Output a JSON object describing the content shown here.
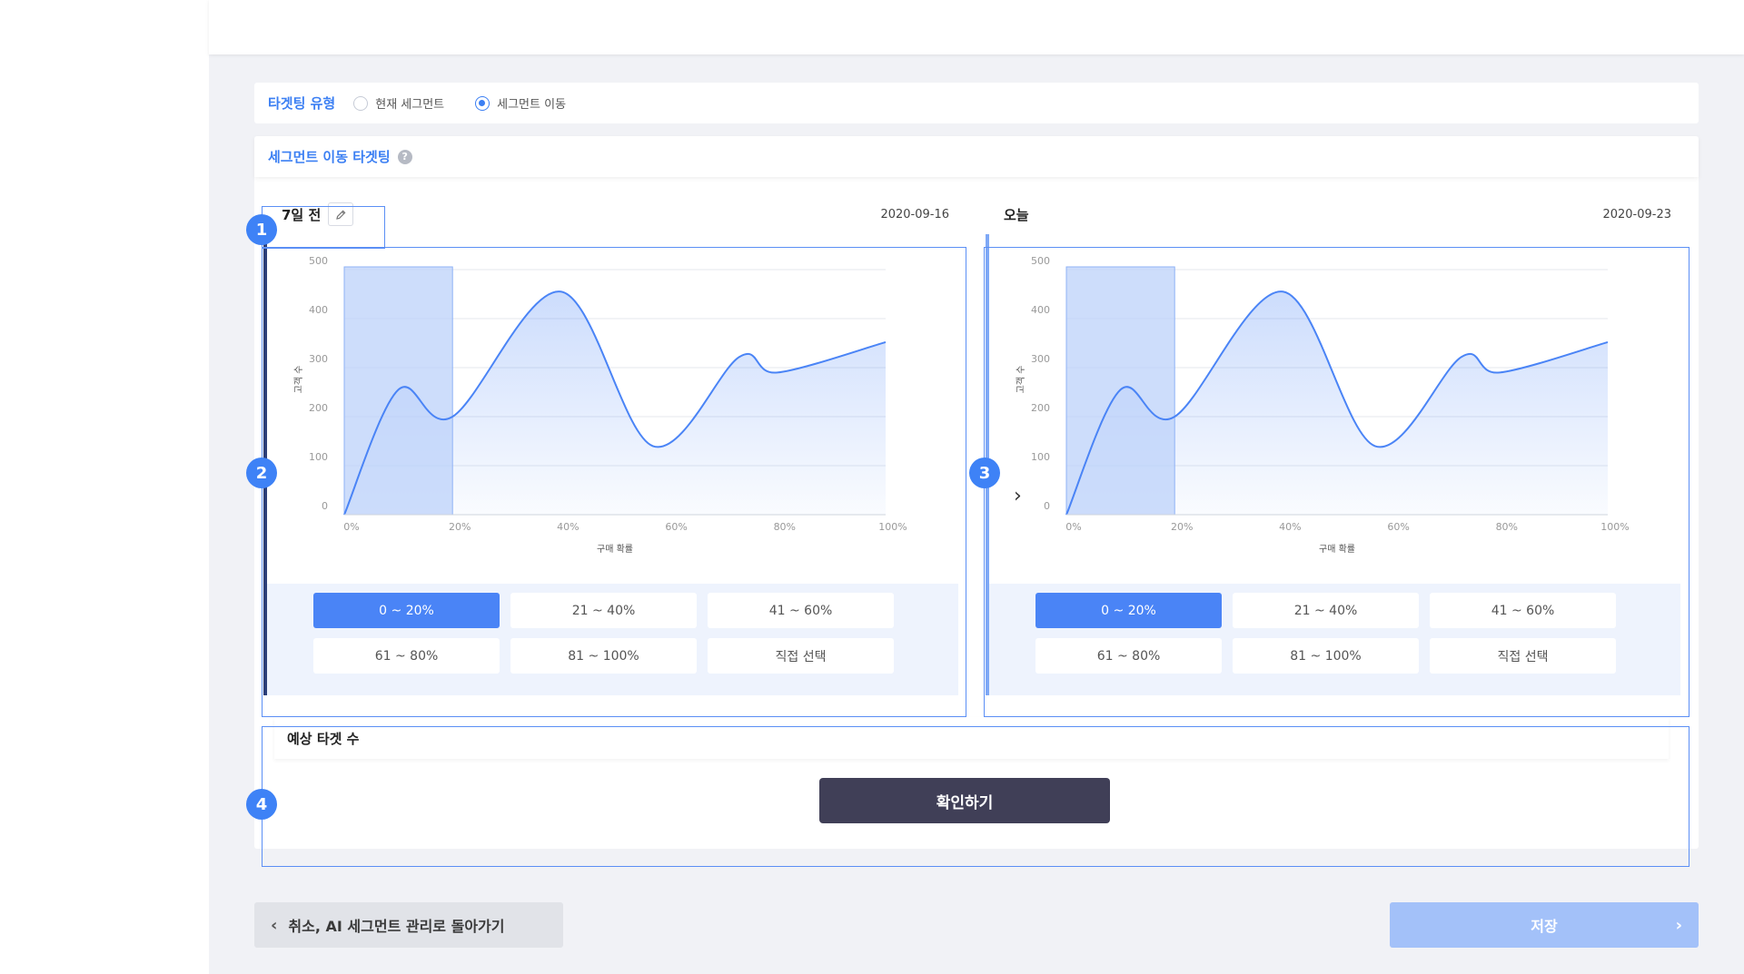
{
  "targeting_type": {
    "label": "타겟팅 유형",
    "options": [
      {
        "label": "현재 세그먼트",
        "selected": false
      },
      {
        "label": "세그먼트 이동",
        "selected": true
      }
    ]
  },
  "segment_targeting": {
    "title": "세그먼트 이동 타겟팅",
    "help_icon": "?"
  },
  "panels": [
    {
      "title": "7일 전",
      "date": "2020-09-16",
      "edit_icon": "pencil-icon",
      "accent_color": "#2c3f78"
    },
    {
      "title": "오늘",
      "date": "2020-09-23",
      "accent_color": "#7ea8f6"
    }
  ],
  "range_buttons": [
    "0 ~ 20%",
    "21 ~ 40%",
    "41 ~ 60%",
    "61 ~ 80%",
    "81 ~ 100%",
    "직접 선택"
  ],
  "active_range": "0 ~ 20%",
  "badges": [
    "1",
    "2",
    "3",
    "4"
  ],
  "arrow_icon": "›",
  "chart_data": {
    "type": "area",
    "xlabel": "구매 확률",
    "ylabel": "고객 수",
    "x_ticks": [
      "0%",
      "20%",
      "40%",
      "60%",
      "80%",
      "100%"
    ],
    "y_ticks": [
      "500",
      "400",
      "300",
      "200",
      "100",
      "0"
    ],
    "ylim": [
      0,
      500
    ],
    "xlim": [
      0,
      100
    ],
    "x": [
      0,
      10,
      20,
      40,
      57,
      73,
      80,
      100
    ],
    "y": [
      0,
      255,
      200,
      455,
      140,
      322,
      290,
      352
    ],
    "highlight_range": [
      0,
      20
    ]
  },
  "estimate": {
    "title": "예상 타겟 수",
    "confirm_label": "확인하기"
  },
  "footer": {
    "back_label": "취소, AI 세그먼트 관리로 돌아가기",
    "back_icon": "‹",
    "save_label": "저장",
    "save_icon": "›"
  },
  "colors": {
    "accent": "#3b7ff3",
    "curve": "#4a84f6",
    "highlight": "#bcd1f9"
  }
}
